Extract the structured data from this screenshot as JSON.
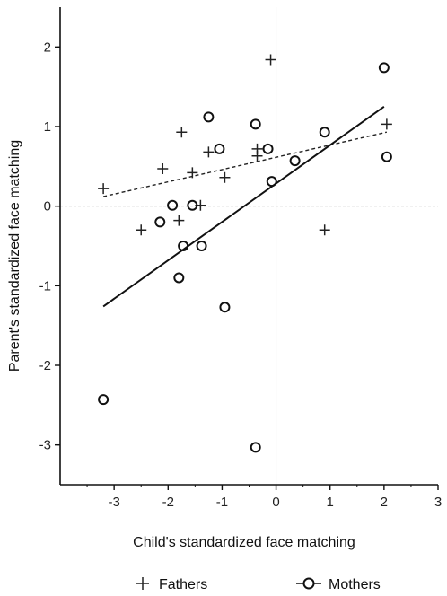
{
  "chart_data": {
    "type": "scatter",
    "title": "",
    "xlabel": "Child's standardized face matching",
    "ylabel": "Parent's standardized face matching",
    "xlim": [
      -4.0,
      3.0
    ],
    "ylim": [
      -3.5,
      2.5
    ],
    "x_ticks": [
      -3,
      -2,
      -1,
      0,
      1,
      2,
      3
    ],
    "x_tick_labels": [
      "-3",
      "-2",
      "-1",
      "0",
      "1",
      "2",
      "3"
    ],
    "y_ticks": [
      -3,
      -2,
      -1,
      0,
      1,
      2
    ],
    "y_tick_labels": [
      "-3",
      "-2",
      "-1",
      "0",
      "1",
      "2"
    ],
    "reference_lines": {
      "x": 0,
      "y": 0
    },
    "grid": false,
    "legend_position": "bottom",
    "series": [
      {
        "name": "Fathers",
        "marker": "plus",
        "color": "#222222",
        "points": [
          {
            "x": -3.2,
            "y": 0.22
          },
          {
            "x": -2.1,
            "y": 0.47
          },
          {
            "x": -1.75,
            "y": 0.93
          },
          {
            "x": -2.5,
            "y": -0.3
          },
          {
            "x": -1.8,
            "y": -0.18
          },
          {
            "x": -1.55,
            "y": 0.42
          },
          {
            "x": -1.4,
            "y": 0.01
          },
          {
            "x": -1.25,
            "y": 0.68
          },
          {
            "x": -0.95,
            "y": 0.36
          },
          {
            "x": -0.35,
            "y": 0.72
          },
          {
            "x": -0.35,
            "y": 0.63
          },
          {
            "x": -0.1,
            "y": 1.84
          },
          {
            "x": 0.9,
            "y": -0.3
          },
          {
            "x": 2.05,
            "y": 1.03
          }
        ],
        "fit": {
          "x": [
            -3.2,
            2.05
          ],
          "y": [
            0.12,
            0.93
          ]
        }
      },
      {
        "name": "Mothers",
        "marker": "circle",
        "color": "#222222",
        "points": [
          {
            "x": -3.2,
            "y": -2.43
          },
          {
            "x": -2.15,
            "y": -0.2
          },
          {
            "x": -1.92,
            "y": 0.01
          },
          {
            "x": -1.8,
            "y": -0.9
          },
          {
            "x": -1.72,
            "y": -0.5
          },
          {
            "x": -1.55,
            "y": 0.01
          },
          {
            "x": -1.38,
            "y": -0.5
          },
          {
            "x": -1.25,
            "y": 1.12
          },
          {
            "x": -1.05,
            "y": 0.72
          },
          {
            "x": -0.95,
            "y": -1.27
          },
          {
            "x": -0.38,
            "y": 1.03
          },
          {
            "x": -0.38,
            "y": -3.03
          },
          {
            "x": -0.15,
            "y": 0.72
          },
          {
            "x": -0.08,
            "y": 0.31
          },
          {
            "x": 0.35,
            "y": 0.57
          },
          {
            "x": 0.9,
            "y": 0.93
          },
          {
            "x": 2.0,
            "y": 1.74
          },
          {
            "x": 2.05,
            "y": 0.62
          }
        ],
        "fit": {
          "x": [
            -3.2,
            2.0
          ],
          "y": [
            -1.26,
            1.25
          ]
        }
      }
    ]
  }
}
